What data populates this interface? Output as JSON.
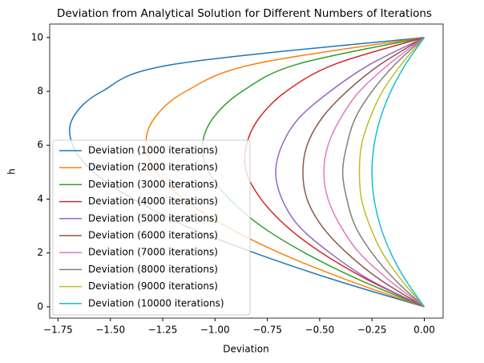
{
  "chart_data": {
    "type": "line",
    "title": "Deviation from Analytical Solution for Different Numbers of Iterations",
    "xlabel": "Deviation",
    "ylabel": "h",
    "y": [
      0,
      1,
      2,
      3,
      4,
      5,
      6,
      7,
      8,
      9,
      10
    ],
    "series": [
      {
        "name": "Deviation (1000 iterations)",
        "color": "#1f77b4",
        "x": [
          0,
          -0.43,
          -0.81,
          -1.14,
          -1.39,
          -1.58,
          -1.68,
          -1.68,
          -1.54,
          -1.2,
          0
        ]
      },
      {
        "name": "Deviation (2000 iterations)",
        "color": "#ff7f0e",
        "x": [
          0,
          -0.37,
          -0.69,
          -0.95,
          -1.15,
          -1.28,
          -1.33,
          -1.29,
          -1.14,
          -0.82,
          0
        ]
      },
      {
        "name": "Deviation (3000 iterations)",
        "color": "#2ca02c",
        "x": [
          0,
          -0.31,
          -0.57,
          -0.78,
          -0.93,
          -1.03,
          -1.06,
          -1.01,
          -0.87,
          -0.61,
          0
        ]
      },
      {
        "name": "Deviation (4000 iterations)",
        "color": "#d62728",
        "x": [
          0,
          -0.27,
          -0.49,
          -0.66,
          -0.78,
          -0.85,
          -0.85,
          -0.79,
          -0.66,
          -0.43,
          0
        ]
      },
      {
        "name": "Deviation (5000 iterations)",
        "color": "#9467bd",
        "x": [
          0,
          -0.26,
          -0.45,
          -0.6,
          -0.68,
          -0.71,
          -0.68,
          -0.6,
          -0.45,
          -0.26,
          0
        ]
      },
      {
        "name": "Deviation (6000 iterations)",
        "color": "#8c564b",
        "x": [
          0,
          -0.21,
          -0.37,
          -0.49,
          -0.56,
          -0.58,
          -0.56,
          -0.49,
          -0.37,
          -0.21,
          0
        ]
      },
      {
        "name": "Deviation (7000 iterations)",
        "color": "#e377c2",
        "x": [
          0,
          -0.17,
          -0.31,
          -0.4,
          -0.46,
          -0.48,
          -0.46,
          -0.4,
          -0.31,
          -0.17,
          0
        ]
      },
      {
        "name": "Deviation (8000 iterations)",
        "color": "#7f7f7f",
        "x": [
          0,
          -0.14,
          -0.25,
          -0.33,
          -0.37,
          -0.39,
          -0.37,
          -0.33,
          -0.25,
          -0.14,
          0
        ]
      },
      {
        "name": "Deviation (9000 iterations)",
        "color": "#bcbd22",
        "x": [
          0,
          -0.11,
          -0.2,
          -0.26,
          -0.3,
          -0.31,
          -0.3,
          -0.26,
          -0.2,
          -0.11,
          0
        ]
      },
      {
        "name": "Deviation (10000 iterations)",
        "color": "#17becf",
        "x": [
          0,
          -0.09,
          -0.16,
          -0.21,
          -0.24,
          -0.25,
          -0.24,
          -0.21,
          -0.16,
          -0.09,
          0
        ]
      }
    ],
    "xlim": [
      -1.79,
      0.09
    ],
    "ylim": [
      -0.42,
      10.5
    ],
    "xticks": [
      {
        "value": -1.75,
        "label": "−1.75"
      },
      {
        "value": -1.5,
        "label": "−1.50"
      },
      {
        "value": -1.25,
        "label": "−1.25"
      },
      {
        "value": -1.0,
        "label": "−1.00"
      },
      {
        "value": -0.75,
        "label": "−0.75"
      },
      {
        "value": -0.5,
        "label": "−0.50"
      },
      {
        "value": -0.25,
        "label": "−0.25"
      },
      {
        "value": 0,
        "label": "0.00"
      }
    ],
    "yticks": [
      0,
      2,
      4,
      6,
      8,
      10
    ],
    "legend": "lower left",
    "grid": false
  }
}
